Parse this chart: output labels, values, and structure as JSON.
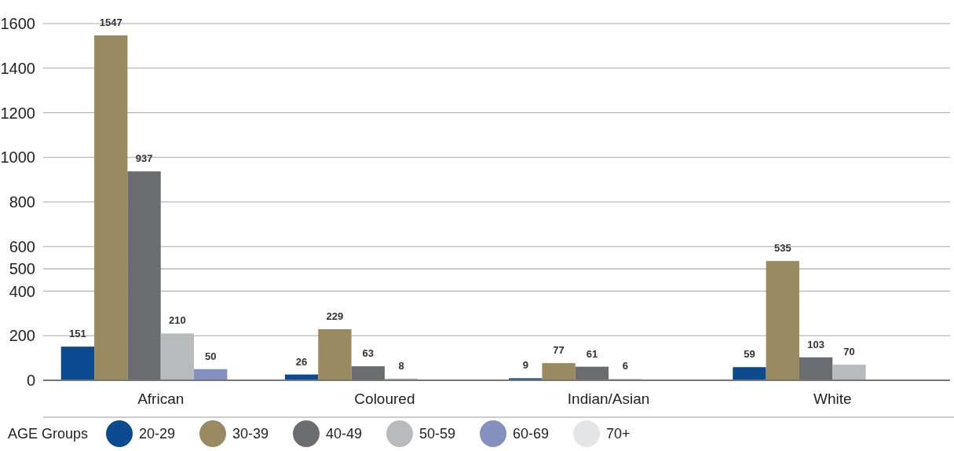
{
  "chart_data": {
    "type": "bar",
    "categories": [
      "African",
      "Coloured",
      "Indian/Asian",
      "White"
    ],
    "series": [
      {
        "name": "20-29",
        "color": "#0b4a8f",
        "values": [
          151,
          26,
          9,
          59
        ]
      },
      {
        "name": "30-39",
        "color": "#9a8a62",
        "values": [
          1547,
          229,
          77,
          535
        ]
      },
      {
        "name": "40-49",
        "color": "#6b6c70",
        "values": [
          937,
          63,
          61,
          103
        ]
      },
      {
        "name": "50-59",
        "color": "#b9babd",
        "values": [
          210,
          8,
          6,
          70
        ]
      },
      {
        "name": "60-69",
        "color": "#8490be",
        "values": [
          50,
          null,
          null,
          null
        ]
      },
      {
        "name": "70+",
        "color": "#e4e5e6",
        "values": [
          null,
          null,
          null,
          null
        ]
      }
    ],
    "ylim": [
      0,
      1600
    ],
    "yticks": [
      0,
      200,
      400,
      500,
      600,
      800,
      1000,
      1200,
      1400,
      1600
    ],
    "grid": "y",
    "legend": "bottom",
    "legend_title": "AGE Groups",
    "data_labels": true
  }
}
